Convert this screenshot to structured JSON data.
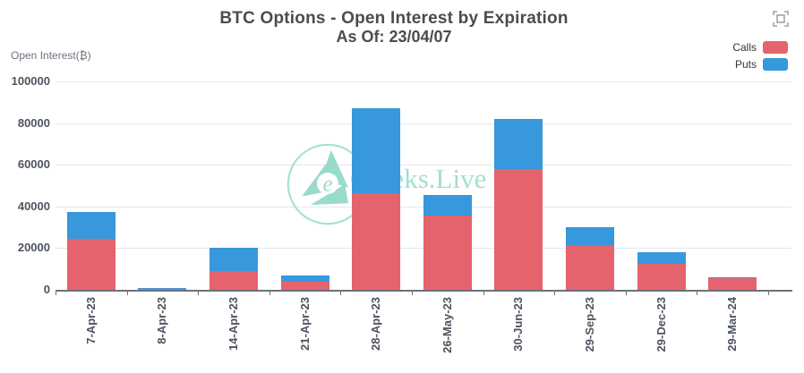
{
  "chart_data": {
    "type": "bar",
    "stacked": true,
    "title": "BTC Options - Open Interest by Expiration",
    "subtitle": "As Of: 23/04/07",
    "ylabel": "Open Interest(₿)",
    "xlabel": "",
    "ylim": [
      0,
      100000
    ],
    "yticks": [
      0,
      20000,
      40000,
      60000,
      80000,
      100000
    ],
    "grid": true,
    "legend_position": "top-right",
    "watermark": "Greeks.Live",
    "categories": [
      "7-Apr-23",
      "8-Apr-23",
      "14-Apr-23",
      "21-Apr-23",
      "28-Apr-23",
      "26-May-23",
      "30-Jun-23",
      "29-Sep-23",
      "29-Dec-23",
      "29-Mar-24"
    ],
    "series": [
      {
        "name": "Calls",
        "color": "#e5636c",
        "values": [
          24600,
          300,
          9000,
          4000,
          46500,
          35500,
          58000,
          21500,
          12500,
          5800
        ]
      },
      {
        "name": "Puts",
        "color": "#3798db",
        "values": [
          12800,
          500,
          11000,
          2800,
          40800,
          10000,
          24000,
          8500,
          5500,
          400
        ]
      }
    ]
  },
  "icons": {
    "toolbox": "fullscreen-icon"
  },
  "colors": {
    "title_text": "#4c4c4c",
    "axis_label": "#4d545e",
    "axis_line": "#6e707a",
    "gridline": "#e2e7f1",
    "watermark": "#8bd8c5",
    "legend_text": "#333333",
    "toolbox_icon": "#a3a3a3"
  }
}
